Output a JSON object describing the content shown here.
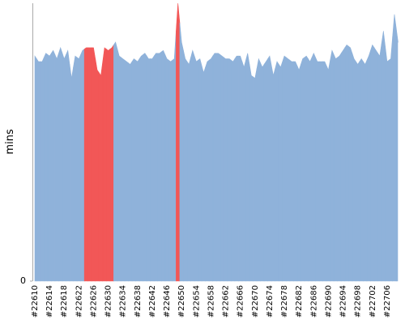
{
  "chart_data": {
    "type": "area",
    "y_label": "mins",
    "categories": [
      "#22610",
      null,
      null,
      null,
      "#22614",
      null,
      null,
      null,
      "#22618",
      null,
      null,
      null,
      "#22622",
      null,
      null,
      null,
      "#22626",
      null,
      null,
      null,
      "#22630",
      null,
      null,
      null,
      "#22634",
      null,
      null,
      null,
      "#22638",
      null,
      null,
      null,
      "#22642",
      null,
      null,
      null,
      "#22646",
      null,
      null,
      null,
      "#22650",
      null,
      null,
      null,
      "#22654",
      null,
      null,
      null,
      "#22658",
      null,
      null,
      null,
      "#22662",
      null,
      null,
      null,
      "#22666",
      null,
      null,
      null,
      "#22670",
      null,
      null,
      null,
      "#22674",
      null,
      null,
      null,
      "#22678",
      null,
      null,
      null,
      "#22682",
      null,
      null,
      null,
      "#22686",
      null,
      null,
      null,
      "#22690",
      null,
      null,
      null,
      "#22694",
      null,
      null,
      null,
      "#22698",
      null,
      null,
      null,
      "#22702",
      null,
      null,
      null,
      "#22706",
      null,
      null,
      null
    ],
    "values": [
      81,
      79,
      79,
      82,
      81,
      83,
      80,
      84,
      80,
      83,
      73,
      81,
      80,
      83,
      84,
      84,
      84,
      76,
      74,
      84,
      83,
      84,
      86,
      81,
      80,
      79,
      78,
      80,
      79,
      81,
      82,
      80,
      80,
      82,
      82,
      83,
      80,
      79,
      80,
      100,
      86,
      80,
      78,
      83,
      79,
      80,
      75,
      79,
      80,
      82,
      82,
      81,
      80,
      80,
      79,
      81,
      81,
      77,
      82,
      74,
      73,
      80,
      77,
      79,
      81,
      74,
      79,
      77,
      81,
      80,
      79,
      79,
      76,
      80,
      81,
      79,
      82,
      79,
      79,
      79,
      76,
      83,
      80,
      81,
      83,
      85,
      84,
      80,
      78,
      80,
      78,
      81,
      85,
      83,
      81,
      90,
      79,
      80,
      96,
      86
    ],
    "colors": [
      "#8fb2da",
      "#8fb2da",
      "#8fb2da",
      "#8fb2da",
      "#8fb2da",
      "#8fb2da",
      "#8fb2da",
      "#8fb2da",
      "#8fb2da",
      "#8fb2da",
      "#8fb2da",
      "#8fb2da",
      "#8fb2da",
      "#8fb2da",
      "#f25757",
      "#f25757",
      "#f25757",
      "#f25757",
      "#f25757",
      "#f25757",
      "#f25757",
      "#f25757",
      "#8fb2da",
      "#8fb2da",
      "#8fb2da",
      "#8fb2da",
      "#8fb2da",
      "#8fb2da",
      "#8fb2da",
      "#8fb2da",
      "#8fb2da",
      "#8fb2da",
      "#8fb2da",
      "#8fb2da",
      "#8fb2da",
      "#8fb2da",
      "#8fb2da",
      "#8fb2da",
      "#8fb2da",
      "#f25757",
      "#8fb2da",
      "#8fb2da",
      "#8fb2da",
      "#8fb2da",
      "#8fb2da",
      "#8fb2da",
      "#8fb2da",
      "#8fb2da",
      "#8fb2da",
      "#8fb2da",
      "#8fb2da",
      "#8fb2da",
      "#8fb2da",
      "#8fb2da",
      "#8fb2da",
      "#8fb2da",
      "#8fb2da",
      "#8fb2da",
      "#8fb2da",
      "#8fb2da",
      "#8fb2da",
      "#8fb2da",
      "#8fb2da",
      "#8fb2da",
      "#8fb2da",
      "#8fb2da",
      "#8fb2da",
      "#8fb2da",
      "#8fb2da",
      "#8fb2da",
      "#8fb2da",
      "#8fb2da",
      "#8fb2da",
      "#8fb2da",
      "#8fb2da",
      "#8fb2da",
      "#8fb2da",
      "#8fb2da",
      "#8fb2da",
      "#8fb2da",
      "#8fb2da",
      "#8fb2da",
      "#8fb2da",
      "#8fb2da",
      "#8fb2da",
      "#8fb2da",
      "#8fb2da",
      "#8fb2da",
      "#8fb2da",
      "#8fb2da",
      "#8fb2da",
      "#8fb2da",
      "#8fb2da",
      "#8fb2da",
      "#8fb2da",
      "#8fb2da",
      "#8fb2da",
      "#8fb2da",
      "#8fb2da",
      "#8fb2da"
    ],
    "ylim": [
      0,
      100
    ],
    "yticks": [
      0
    ]
  }
}
